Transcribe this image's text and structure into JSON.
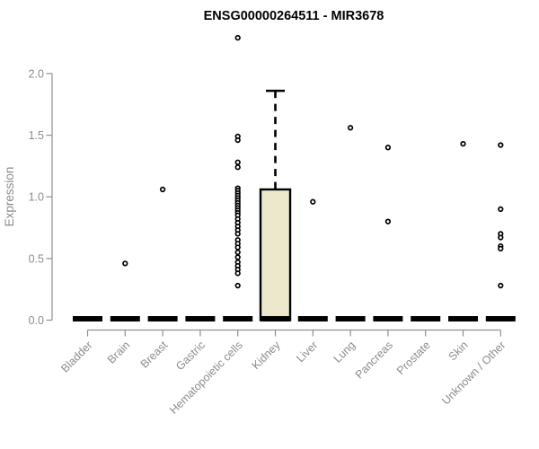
{
  "chart_data": {
    "type": "boxplot",
    "title": "ENSG00000264511 - MIR3678",
    "ylabel": "Expression",
    "xlabel": "",
    "ylim": [
      0,
      2.0
    ],
    "yticks": [
      "0.0",
      "0.5",
      "1.0",
      "1.5",
      "2.0"
    ],
    "ytick_values": [
      0.0,
      0.5,
      1.0,
      1.5,
      2.0
    ],
    "grid": false,
    "legend": "none",
    "categories": [
      "Bladder",
      "Brain",
      "Breast",
      "Gastric",
      "Hematopoietic cells",
      "Kidney",
      "Liver",
      "Lung",
      "Pancreas",
      "Prostate",
      "Skin",
      "Unknown / Other"
    ],
    "boxes": [
      {
        "category": "Bladder",
        "q1": 0,
        "median": 0,
        "q3": 0,
        "whisker_low": 0,
        "whisker_high": 0,
        "outliers": []
      },
      {
        "category": "Brain",
        "q1": 0,
        "median": 0,
        "q3": 0,
        "whisker_low": 0,
        "whisker_high": 0,
        "outliers": [
          0.46
        ]
      },
      {
        "category": "Breast",
        "q1": 0,
        "median": 0,
        "q3": 0,
        "whisker_low": 0,
        "whisker_high": 0,
        "outliers": [
          1.06
        ]
      },
      {
        "category": "Gastric",
        "q1": 0,
        "median": 0,
        "q3": 0,
        "whisker_low": 0,
        "whisker_high": 0,
        "outliers": []
      },
      {
        "category": "Hematopoietic cells",
        "q1": 0,
        "median": 0,
        "q3": 0,
        "whisker_low": 0,
        "whisker_high": 0,
        "outliers": [
          2.29,
          1.49,
          1.46,
          1.28,
          1.24,
          1.07,
          1.05,
          1.03,
          1.01,
          0.99,
          0.97,
          0.95,
          0.93,
          0.91,
          0.89,
          0.87,
          0.85,
          0.82,
          0.79,
          0.76,
          0.73,
          0.7,
          0.65,
          0.62,
          0.59,
          0.55,
          0.51,
          0.47,
          0.44,
          0.41,
          0.38,
          0.28
        ]
      },
      {
        "category": "Kidney",
        "q1": 0,
        "median": 0,
        "q3": 1.06,
        "whisker_low": 0,
        "whisker_high": 1.86,
        "outliers": []
      },
      {
        "category": "Liver",
        "q1": 0,
        "median": 0,
        "q3": 0,
        "whisker_low": 0,
        "whisker_high": 0,
        "outliers": [
          0.96
        ]
      },
      {
        "category": "Lung",
        "q1": 0,
        "median": 0,
        "q3": 0,
        "whisker_low": 0,
        "whisker_high": 0,
        "outliers": [
          1.56
        ]
      },
      {
        "category": "Pancreas",
        "q1": 0,
        "median": 0,
        "q3": 0,
        "whisker_low": 0,
        "whisker_high": 0,
        "outliers": [
          1.4,
          0.8
        ]
      },
      {
        "category": "Prostate",
        "q1": 0,
        "median": 0,
        "q3": 0,
        "whisker_low": 0,
        "whisker_high": 0,
        "outliers": []
      },
      {
        "category": "Skin",
        "q1": 0,
        "median": 0,
        "q3": 0,
        "whisker_low": 0,
        "whisker_high": 0,
        "outliers": [
          1.43
        ]
      },
      {
        "category": "Unknown / Other",
        "q1": 0,
        "median": 0,
        "q3": 0,
        "whisker_low": 0,
        "whisker_high": 0,
        "outliers": [
          1.42,
          0.9,
          0.7,
          0.67,
          0.6,
          0.58,
          0.28
        ]
      }
    ],
    "colors": {
      "box_fill": "#ece8cb",
      "box_stroke": "#000000",
      "median": "#000000",
      "whisker": "#000000",
      "point_stroke": "#000000",
      "point_fill": "#ffffff",
      "axis": "#909090",
      "tick_text": "#8c8c8c",
      "title_text": "#000000"
    }
  }
}
